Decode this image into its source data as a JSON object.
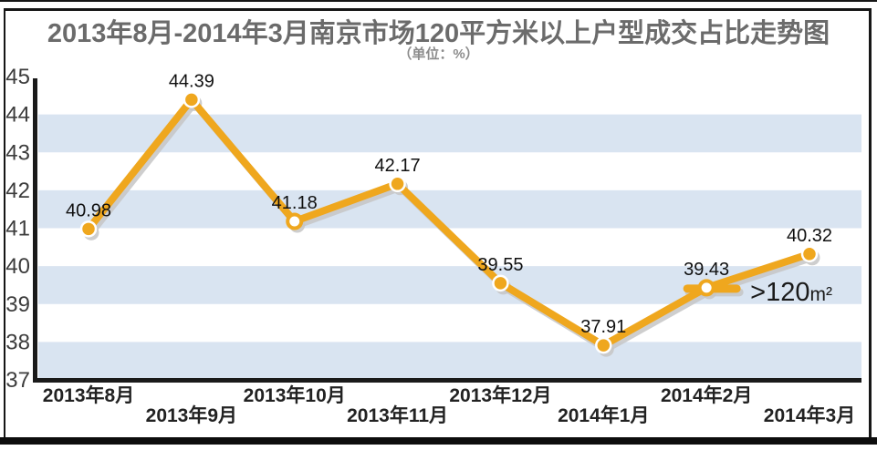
{
  "chart_data": {
    "type": "line",
    "title": "2013年8月-2014年3月南京市场120平方米以上户型成交占比走势图",
    "subtitle": "（单位：%）",
    "categories": [
      "2013年8月",
      "2013年9月",
      "2013年10月",
      "2013年11月",
      "2013年12月",
      "2014年1月",
      "2014年2月",
      "2014年3月"
    ],
    "series": [
      {
        "name": ">120m²",
        "values": [
          40.98,
          44.39,
          41.18,
          42.17,
          39.55,
          37.91,
          39.43,
          40.32
        ]
      }
    ],
    "ylim": [
      37,
      45
    ],
    "yticks": [
      45,
      44,
      43,
      42,
      41,
      40,
      39,
      38,
      37
    ],
    "grid": "alternating 1-unit horizontal bands, no vertical gridlines",
    "legend_position": "inline annotation right of the 2014年2月 data point",
    "annotation": {
      "text": ">120m²",
      "text_main": ">120",
      "text_unit": "m²",
      "attached_to": "2014年2月"
    },
    "hollow_marker_indexes": [
      2,
      6
    ],
    "x_label_rows": "odd-position months on upper row, even-position months on lower row",
    "colors": {
      "line": "#EFA71E",
      "band": "#D9E4F1",
      "shadow": "#C6C6C6",
      "axis": "#1A1A1A",
      "title_gray": "#6B6B6B",
      "label_black": "#111111",
      "tick_gray": "#3D3D3D"
    }
  }
}
